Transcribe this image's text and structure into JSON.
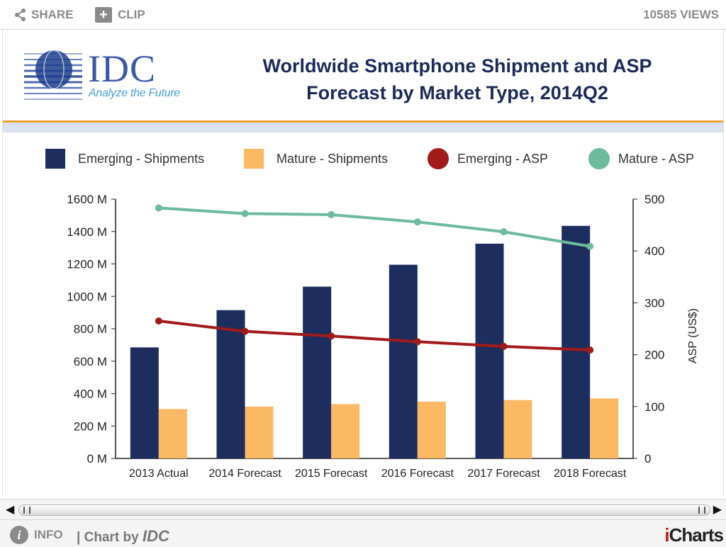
{
  "toolbar": {
    "share_label": "SHARE",
    "clip_label": "CLIP",
    "views": "10585 VIEWS"
  },
  "logo": {
    "word": "IDC",
    "tagline": "Analyze the Future"
  },
  "footer": {
    "info_label": "INFO",
    "chart_by_prefix": "| Chart by ",
    "chart_by_name": "IDC",
    "brand_i": "i",
    "brand_rest": "Charts"
  },
  "colors": {
    "emerging_shipments": "#1c2d5e",
    "mature_shipments": "#fbb964",
    "emerging_asp": "#a21a1a",
    "mature_asp": "#6dba9c",
    "title": "#1c2a5a",
    "accent_rule": "#f0a030"
  },
  "icons": {
    "share": "share-icon",
    "clip": "plus-box-icon",
    "info": "info-icon",
    "scroll_left": "triangle-left-icon",
    "scroll_right": "triangle-right-icon"
  },
  "chart_data": {
    "type": "bar",
    "title": "Worldwide Smartphone Shipment and ASP Forecast by Market Type, 2014Q2",
    "title_lines": [
      "Worldwide Smartphone Shipment and ASP",
      "Forecast by Market Type, 2014Q2"
    ],
    "categories": [
      "2013 Actual",
      "2014 Forecast",
      "2015 Forecast",
      "2016 Forecast",
      "2017 Forecast",
      "2018 Forecast"
    ],
    "series": [
      {
        "name": "Emerging - Shipments",
        "type": "bar",
        "axis": "left",
        "values": [
          685,
          915,
          1060,
          1195,
          1325,
          1435
        ]
      },
      {
        "name": "Mature - Shipments",
        "type": "bar",
        "axis": "left",
        "values": [
          305,
          320,
          335,
          350,
          360,
          370
        ]
      },
      {
        "name": "Emerging - ASP",
        "type": "line",
        "axis": "right",
        "values": [
          265,
          245,
          236,
          225,
          216,
          209
        ]
      },
      {
        "name": "Mature - ASP",
        "type": "line",
        "axis": "right",
        "values": [
          483,
          472,
          470,
          456,
          437,
          409
        ]
      }
    ],
    "left_axis": {
      "ylim": [
        0,
        1600
      ],
      "ticks": [
        "0 M",
        "200 M",
        "400 M",
        "600 M",
        "800 M",
        "1000 M",
        "1200 M",
        "1400 M",
        "1600 M"
      ]
    },
    "right_axis": {
      "label": "ASP (US$)",
      "ylim": [
        0,
        500
      ],
      "ticks": [
        "0",
        "100",
        "200",
        "300",
        "400",
        "500"
      ]
    },
    "legend": "top",
    "grid": false
  }
}
